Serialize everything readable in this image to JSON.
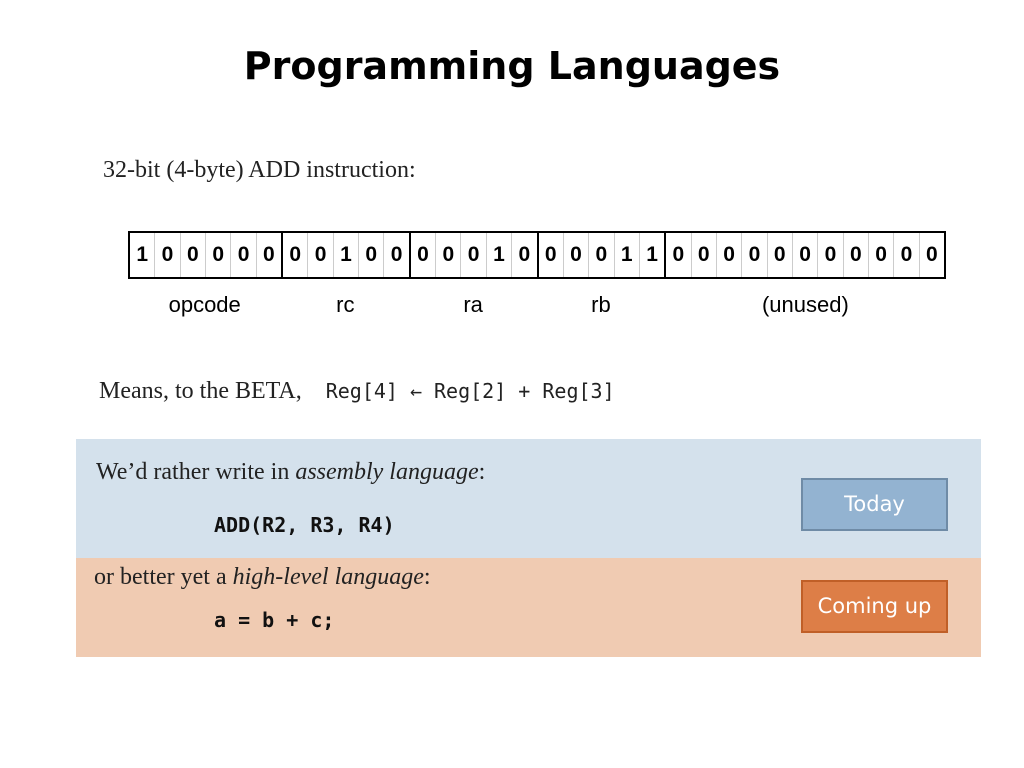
{
  "title": "Programming Languages",
  "intro": "32-bit (4-byte) ADD instruction:",
  "bits": [
    "1",
    "0",
    "0",
    "0",
    "0",
    "0",
    "0",
    "0",
    "1",
    "0",
    "0",
    "0",
    "0",
    "0",
    "1",
    "0",
    "0",
    "0",
    "0",
    "1",
    "1",
    "0",
    "0",
    "0",
    "0",
    "0",
    "0",
    "0",
    "0",
    "0",
    "0",
    "0"
  ],
  "fields": [
    {
      "label": "opcode",
      "width": 6
    },
    {
      "label": "rc",
      "width": 5
    },
    {
      "label": "ra",
      "width": 5
    },
    {
      "label": "rb",
      "width": 5
    },
    {
      "label": "(unused)",
      "width": 11
    }
  ],
  "means": {
    "prefix": "Means, to the BETA,",
    "lhs": "Reg[4]",
    "arrow": "←",
    "rhs": "Reg[2] + Reg[3]"
  },
  "assembly": {
    "text_before": "We’d rather write in ",
    "emph": "assembly language",
    "text_after": ":",
    "code": "ADD(R2, R3, R4)",
    "button": "Today",
    "color": "#93b3d1"
  },
  "highlevel": {
    "text_before": "or better yet a ",
    "emph": "high-level language",
    "text_after": ":",
    "code": "a = b + c;",
    "button": "Coming up",
    "color": "#dd7e47"
  }
}
